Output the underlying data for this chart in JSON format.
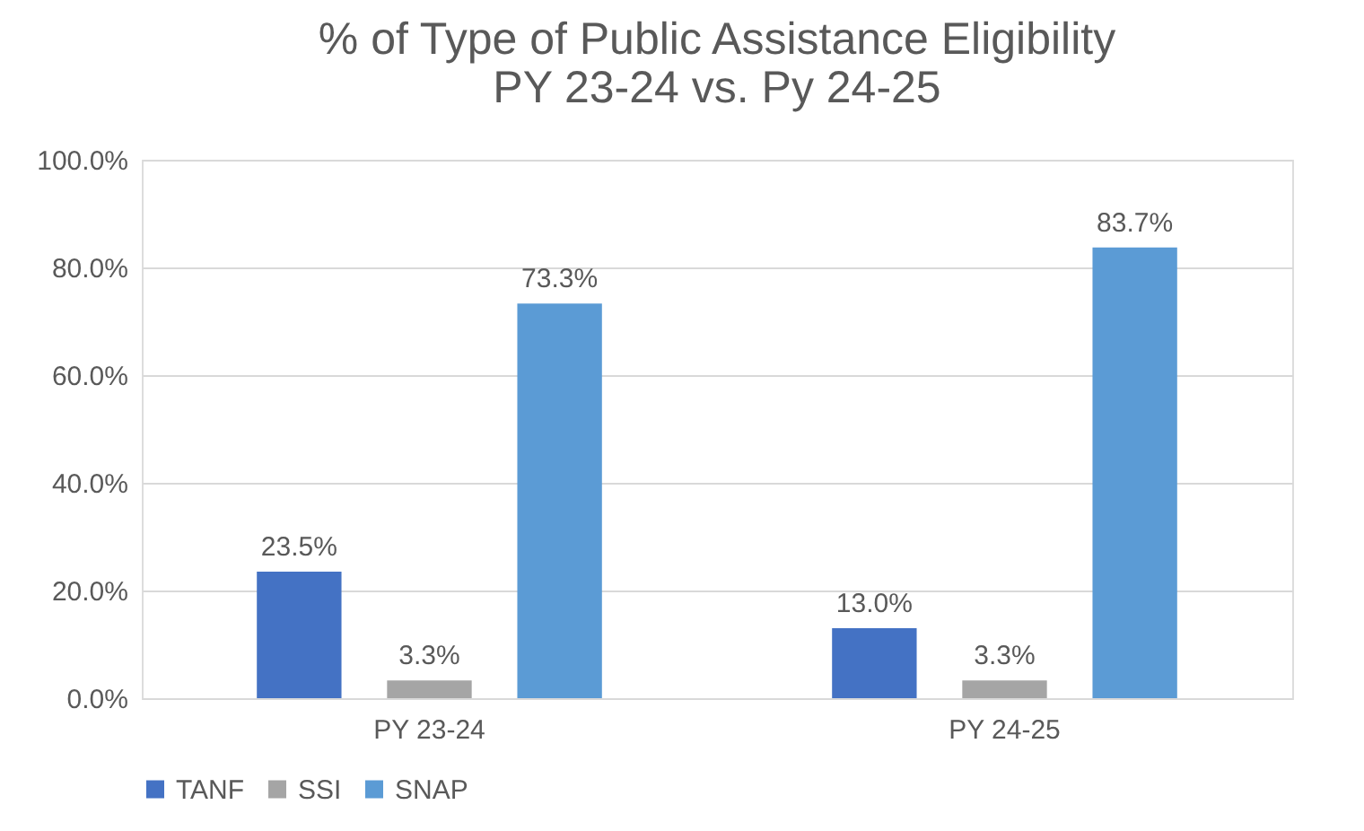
{
  "chart_data": {
    "type": "bar",
    "title": "% of Type of Public Assistance Eligibility\nPY 23-24 vs. Py 24-25",
    "categories": [
      "PY 23-24",
      "PY 24-25"
    ],
    "series": [
      {
        "name": "TANF",
        "color": "#4472c4",
        "values": [
          23.5,
          13.0
        ],
        "value_labels": [
          "23.5%",
          "13.0%"
        ]
      },
      {
        "name": "SSI",
        "color": "#a5a5a5",
        "values": [
          3.3,
          3.3
        ],
        "value_labels": [
          "3.3%",
          "3.3%"
        ]
      },
      {
        "name": "SNAP",
        "color": "#5b9bd5",
        "values": [
          73.3,
          83.7
        ],
        "value_labels": [
          "73.3%",
          "83.7%"
        ]
      }
    ],
    "ylim": [
      0,
      100
    ],
    "yticks": [
      {
        "value": 0,
        "label": "0.0%"
      },
      {
        "value": 20,
        "label": "20.0%"
      },
      {
        "value": 40,
        "label": "40.0%"
      },
      {
        "value": 60,
        "label": "60.0%"
      },
      {
        "value": 80,
        "label": "80.0%"
      },
      {
        "value": 100,
        "label": "100.0%"
      }
    ],
    "grid": "y",
    "legend": "bottom"
  }
}
